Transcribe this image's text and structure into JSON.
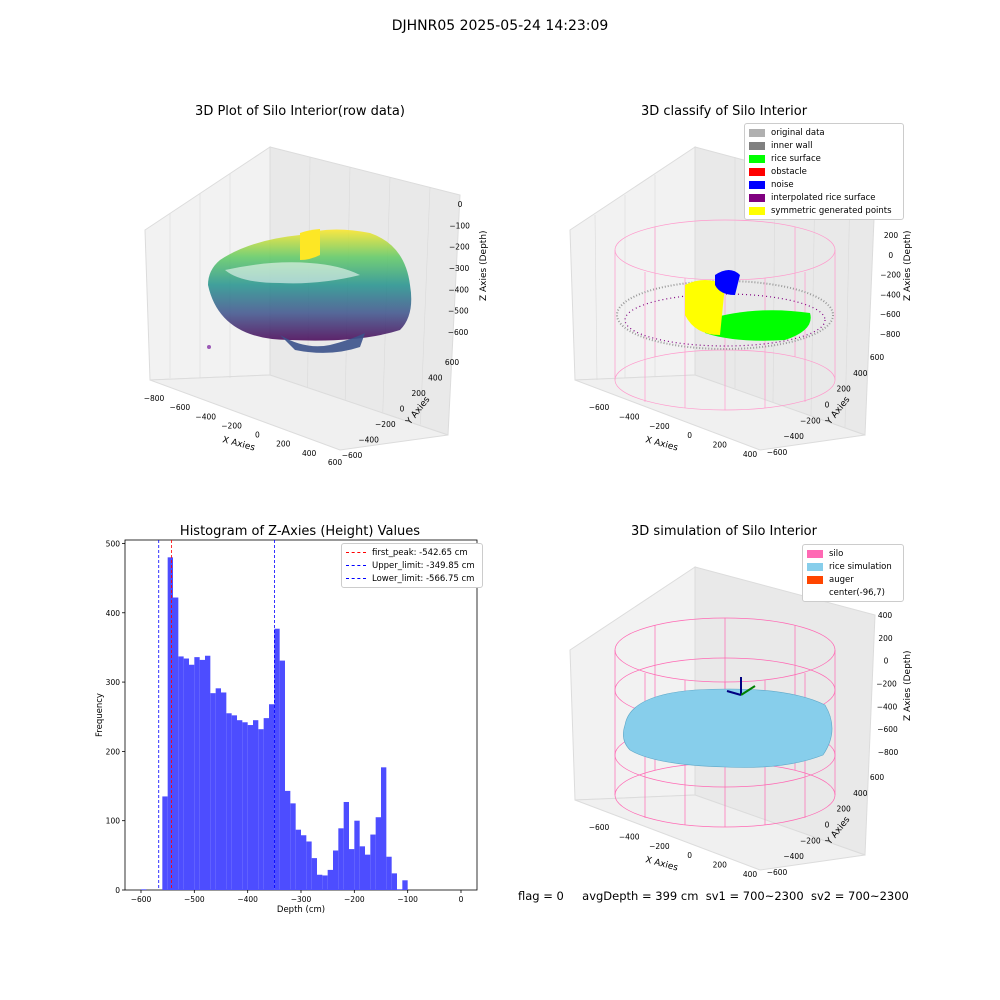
{
  "suptitle": "DJHNR05 2025-05-24 14:23:09",
  "footer": {
    "flag": "flag = 0",
    "avg_depth": "avgDepth = 399 cm",
    "sv1": "sv1 = 700~2300",
    "sv2": "sv2 = 700~2300"
  },
  "chart_data": [
    {
      "type": "scatter",
      "title": "3D Plot of Silo Interior(row data)",
      "xlabel": "X Axies",
      "ylabel": "Y Axies",
      "zlabel": "Z Axies (Depth)",
      "x_ticks": [
        "−800",
        "−600",
        "−400",
        "−200",
        "0",
        "200",
        "400",
        "600"
      ],
      "y_ticks": [
        "−600",
        "−400",
        "−200",
        "0",
        "200",
        "400",
        "600"
      ],
      "z_ticks": [
        "0",
        "−100",
        "−200",
        "−300",
        "−400",
        "−500",
        "−600"
      ],
      "xlim": [
        -800,
        600
      ],
      "ylim": [
        -600,
        600
      ],
      "zlim": [
        -650,
        0
      ],
      "colormap": "viridis"
    },
    {
      "type": "scatter",
      "title": "3D classify of Silo Interior",
      "xlabel": "X Axies",
      "ylabel": "Y Axies",
      "zlabel": "Z Axies (Depth)",
      "x_ticks": [
        "−600",
        "−400",
        "−200",
        "0",
        "200",
        "400"
      ],
      "y_ticks": [
        "−600",
        "−400",
        "−200",
        "0",
        "200",
        "400",
        "600"
      ],
      "z_ticks": [
        "200",
        "0",
        "−200",
        "−400",
        "−600",
        "−800"
      ],
      "legend": [
        {
          "label": "original data",
          "color": "#b0b0b0"
        },
        {
          "label": "inner wall",
          "color": "#808080"
        },
        {
          "label": "rice surface",
          "color": "#00ff00"
        },
        {
          "label": "obstacle",
          "color": "#ff0000"
        },
        {
          "label": "noise",
          "color": "#0000ff"
        },
        {
          "label": "interpolated rice surface",
          "color": "#800080"
        },
        {
          "label": "symmetric generated points",
          "color": "#ffff00"
        }
      ],
      "legend_position": "top-right"
    },
    {
      "type": "bar",
      "title": "Histogram of Z-Axies (Height) Values",
      "xlabel": "Depth (cm)",
      "ylabel": "Frequency",
      "xlim": [
        -630,
        30
      ],
      "ylim": [
        0,
        505
      ],
      "bin_width": 10,
      "x_ticks": [
        "−600",
        "−500",
        "−400",
        "−300",
        "−200",
        "−100",
        "0"
      ],
      "y_ticks": [
        "0",
        "100",
        "200",
        "300",
        "400",
        "500"
      ],
      "bar_color": "#4d4dff",
      "bins": [
        {
          "x": -600,
          "v": 1
        },
        {
          "x": -560,
          "v": 135
        },
        {
          "x": -550,
          "v": 480
        },
        {
          "x": -540,
          "v": 422
        },
        {
          "x": -530,
          "v": 337
        },
        {
          "x": -520,
          "v": 334
        },
        {
          "x": -510,
          "v": 325
        },
        {
          "x": -500,
          "v": 336
        },
        {
          "x": -490,
          "v": 332
        },
        {
          "x": -480,
          "v": 338
        },
        {
          "x": -470,
          "v": 284
        },
        {
          "x": -460,
          "v": 291
        },
        {
          "x": -450,
          "v": 285
        },
        {
          "x": -440,
          "v": 255
        },
        {
          "x": -430,
          "v": 252
        },
        {
          "x": -420,
          "v": 245
        },
        {
          "x": -410,
          "v": 242
        },
        {
          "x": -400,
          "v": 238
        },
        {
          "x": -390,
          "v": 245
        },
        {
          "x": -380,
          "v": 232
        },
        {
          "x": -370,
          "v": 248
        },
        {
          "x": -360,
          "v": 268
        },
        {
          "x": -350,
          "v": 377
        },
        {
          "x": -340,
          "v": 331
        },
        {
          "x": -330,
          "v": 143
        },
        {
          "x": -320,
          "v": 125
        },
        {
          "x": -310,
          "v": 87
        },
        {
          "x": -300,
          "v": 79
        },
        {
          "x": -290,
          "v": 70
        },
        {
          "x": -280,
          "v": 46
        },
        {
          "x": -270,
          "v": 22
        },
        {
          "x": -260,
          "v": 21
        },
        {
          "x": -250,
          "v": 29
        },
        {
          "x": -240,
          "v": 57
        },
        {
          "x": -230,
          "v": 89
        },
        {
          "x": -220,
          "v": 127
        },
        {
          "x": -210,
          "v": 59
        },
        {
          "x": -200,
          "v": 100
        },
        {
          "x": -190,
          "v": 63
        },
        {
          "x": -180,
          "v": 51
        },
        {
          "x": -170,
          "v": 80
        },
        {
          "x": -160,
          "v": 105
        },
        {
          "x": -150,
          "v": 177
        },
        {
          "x": -140,
          "v": 48
        },
        {
          "x": -130,
          "v": 24
        },
        {
          "x": -120,
          "v": 1
        },
        {
          "x": -110,
          "v": 14
        }
      ],
      "vlines": [
        {
          "label": "first_peak: -542.65 cm",
          "x": -542.65,
          "color": "#ff0000"
        },
        {
          "label": "Upper_limit: -349.85 cm",
          "x": -349.85,
          "color": "#0000ff"
        },
        {
          "label": "Lower_limit: -566.75 cm",
          "x": -566.75,
          "color": "#0000ff"
        }
      ],
      "legend_position": "top-right"
    },
    {
      "type": "area",
      "title": "3D simulation of Silo Interior",
      "xlabel": "X Axies",
      "ylabel": "Y Axies",
      "zlabel": "Z Axies (Depth)",
      "x_ticks": [
        "−600",
        "−400",
        "−200",
        "0",
        "200",
        "400"
      ],
      "y_ticks": [
        "−600",
        "−400",
        "−200",
        "0",
        "200",
        "400",
        "600"
      ],
      "z_ticks": [
        "400",
        "200",
        "0",
        "−200",
        "−400",
        "−600",
        "−800"
      ],
      "legend": [
        {
          "label": "silo",
          "color": "#ff69b4"
        },
        {
          "label": "rice simulation",
          "color": "#87ceeb"
        },
        {
          "label": "auger",
          "color": "#ff4500"
        },
        {
          "label": "center(-96,7)",
          "color": ""
        }
      ],
      "legend_position": "top-right"
    }
  ]
}
